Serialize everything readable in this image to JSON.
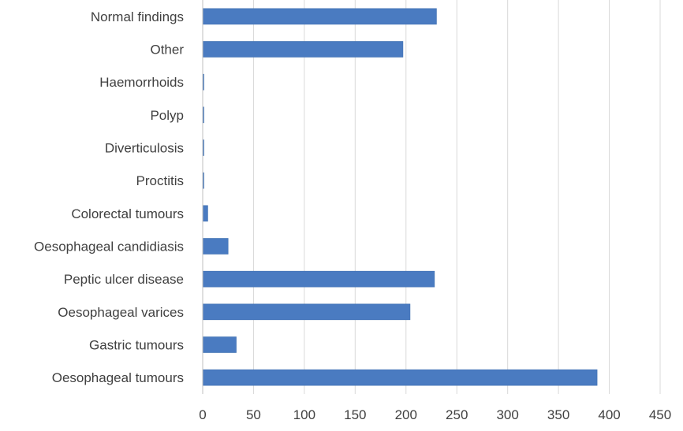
{
  "chart_data": {
    "type": "bar",
    "orientation": "horizontal",
    "categories": [
      "Oesophageal tumours",
      "Gastric tumours",
      "Oesophageal varices",
      "Peptic ulcer disease",
      "Oesophageal candidiasis",
      "Colorectal tumours",
      "Proctitis",
      "Diverticulosis",
      "Polyp",
      "Haemorrhoids",
      "Other",
      "Normal findings"
    ],
    "values": [
      388,
      33,
      204,
      228,
      25,
      5,
      1,
      1,
      0,
      0,
      197,
      230
    ],
    "title": "",
    "xlabel": "",
    "ylabel": "",
    "xlim": [
      0,
      450
    ],
    "xticks": [
      "0",
      "50",
      "100",
      "150",
      "200",
      "250",
      "300",
      "350",
      "400",
      "450"
    ],
    "grid": "vertical",
    "legend": "none",
    "bar_color": "#4a7bc1"
  }
}
